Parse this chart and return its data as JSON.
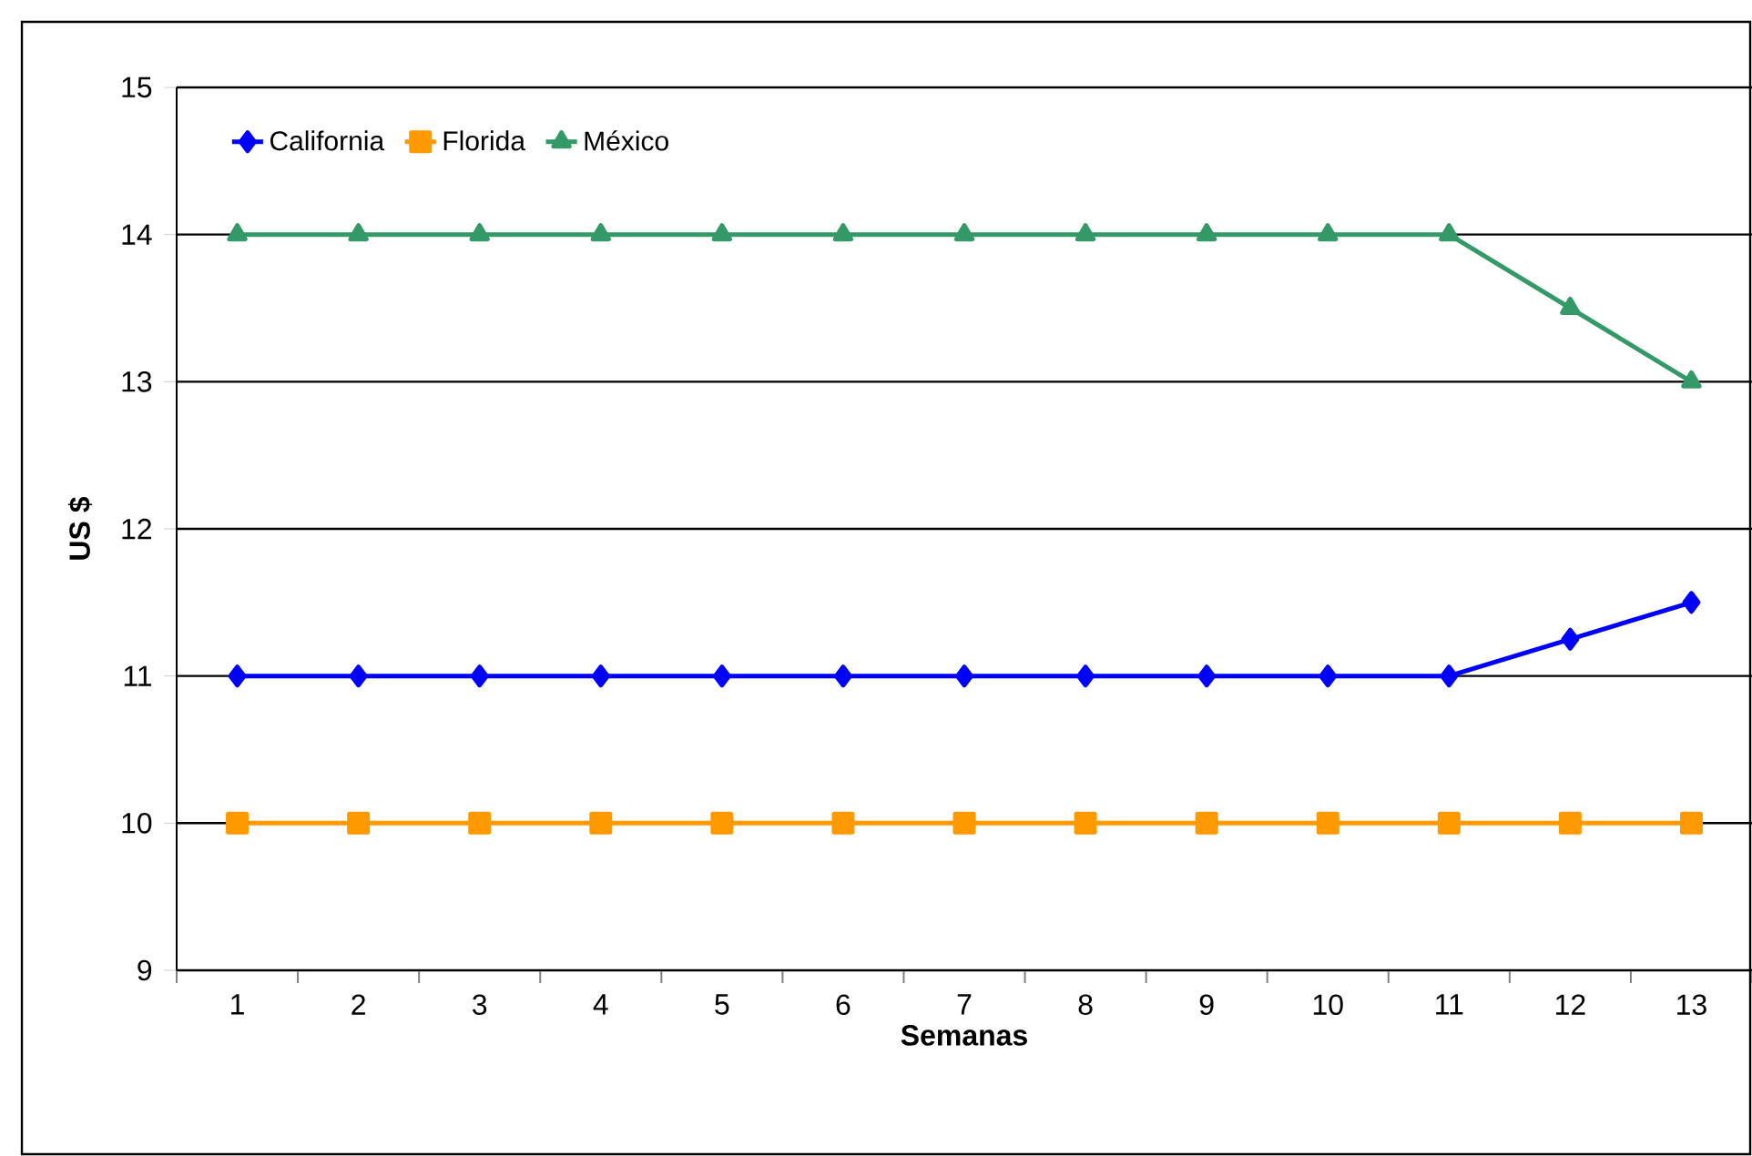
{
  "chart_data": {
    "type": "line",
    "ylabel": "US $",
    "xlabel": "Semanas",
    "categories": [
      "1",
      "2",
      "3",
      "4",
      "5",
      "6",
      "7",
      "8",
      "9",
      "10",
      "11",
      "12",
      "13"
    ],
    "series": [
      {
        "name": "California",
        "color": "#0000ff",
        "marker": "diamond",
        "values": [
          11,
          11,
          11,
          11,
          11,
          11,
          11,
          11,
          11,
          11,
          11,
          11.25,
          11.5
        ]
      },
      {
        "name": "Florida",
        "color": "#ff9900",
        "marker": "square",
        "values": [
          10,
          10,
          10,
          10,
          10,
          10,
          10,
          10,
          10,
          10,
          10,
          10,
          10
        ]
      },
      {
        "name": "México",
        "color": "#339966",
        "marker": "triangle",
        "values": [
          14,
          14,
          14,
          14,
          14,
          14,
          14,
          14,
          14,
          14,
          14,
          13.5,
          13
        ]
      }
    ],
    "ylim": [
      9,
      15
    ],
    "yticks": [
      9,
      10,
      11,
      12,
      13,
      14,
      15
    ],
    "grid": "y",
    "legend": "top left",
    "line_style": "solid"
  }
}
